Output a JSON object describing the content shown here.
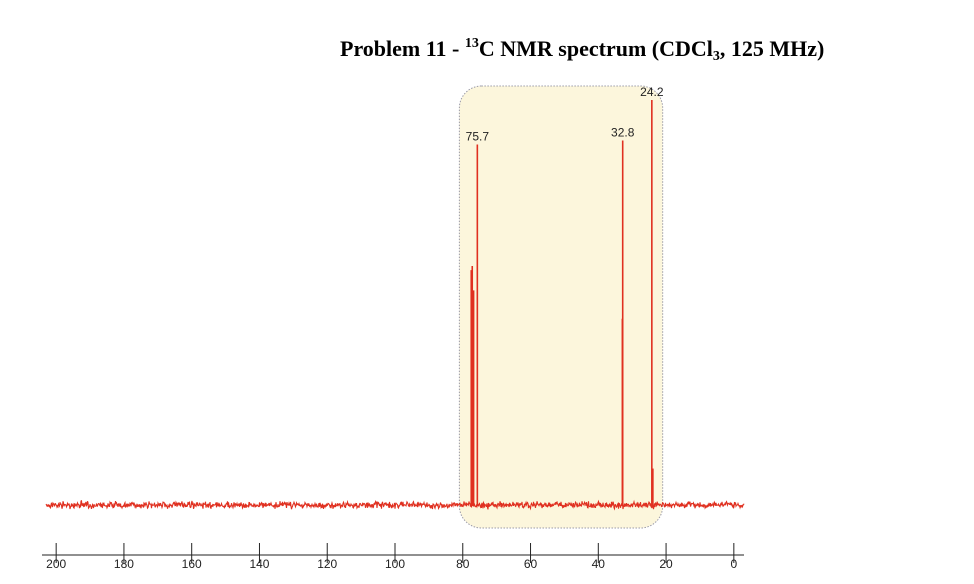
{
  "title": {
    "pre": "Problem 11 - ",
    "isotope": "13",
    "mid": "C NMR spectrum (CDCl",
    "sub": "3",
    "post": ", 125 MHz)"
  },
  "chart_data": {
    "type": "line",
    "title": "Problem 11 - 13C NMR spectrum (CDCl3, 125 MHz)",
    "xlabel": "",
    "ylabel": "",
    "xlim": [
      203,
      -3
    ],
    "x_ticks": [
      200,
      180,
      160,
      140,
      120,
      100,
      80,
      60,
      40,
      20,
      0
    ],
    "highlight_region": [
      81,
      21
    ],
    "colors": {
      "spectrum": "#e03020",
      "highlight_fill": "#fcf6dc",
      "highlight_stroke": "#9a9aa8"
    },
    "peaks": [
      {
        "shift": 77.5,
        "intensity": 0.58,
        "label": ""
      },
      {
        "shift": 77.2,
        "intensity": 0.59,
        "label": ""
      },
      {
        "shift": 76.8,
        "intensity": 0.53,
        "label": ""
      },
      {
        "shift": 75.7,
        "intensity": 0.89,
        "label": "75.7"
      },
      {
        "shift": 32.8,
        "intensity": 0.9,
        "label": "32.8"
      },
      {
        "shift": 32.9,
        "intensity": 0.46,
        "label": ""
      },
      {
        "shift": 24.2,
        "intensity": 1.0,
        "label": "24.2"
      },
      {
        "shift": 23.9,
        "intensity": 0.09,
        "label": ""
      }
    ]
  }
}
